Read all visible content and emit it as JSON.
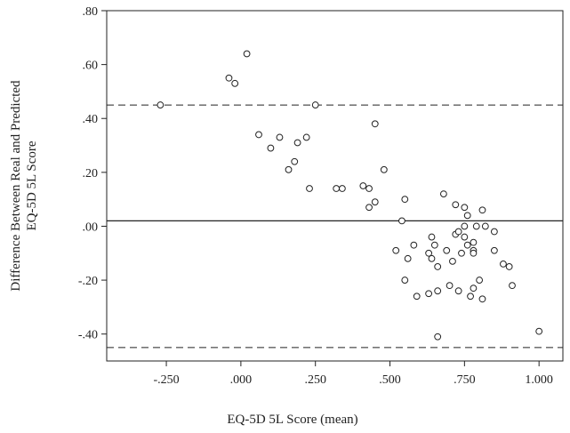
{
  "chart_data": {
    "type": "scatter",
    "xlabel": "EQ-5D 5L Score (mean)",
    "ylabel_lines": [
      "Difference Between Real and Predicted",
      "EQ-5D 5L Score"
    ],
    "xlim": [
      -0.45,
      1.08
    ],
    "ylim": [
      -0.5,
      0.8
    ],
    "x_ticks": [
      -0.25,
      0.0,
      0.25,
      0.5,
      0.75,
      1.0
    ],
    "x_tick_labels": [
      "-.250",
      ".000",
      ".250",
      ".500",
      ".750",
      "1.000"
    ],
    "y_ticks": [
      0.8,
      0.6,
      0.4,
      0.2,
      0.0,
      -0.2,
      -0.4
    ],
    "y_tick_labels": [
      ".80",
      ".60",
      ".40",
      ".20",
      ".00",
      "-.20",
      "-.40"
    ],
    "mean_line": 0.02,
    "limits_of_agreement": [
      0.45,
      -0.45
    ],
    "grid": false,
    "points": [
      {
        "x": -0.27,
        "y": 0.45
      },
      {
        "x": -0.04,
        "y": 0.55
      },
      {
        "x": -0.02,
        "y": 0.53
      },
      {
        "x": 0.02,
        "y": 0.64
      },
      {
        "x": 0.06,
        "y": 0.34
      },
      {
        "x": 0.1,
        "y": 0.29
      },
      {
        "x": 0.13,
        "y": 0.33
      },
      {
        "x": 0.16,
        "y": 0.21
      },
      {
        "x": 0.18,
        "y": 0.24
      },
      {
        "x": 0.19,
        "y": 0.31
      },
      {
        "x": 0.22,
        "y": 0.33
      },
      {
        "x": 0.23,
        "y": 0.14
      },
      {
        "x": 0.25,
        "y": 0.45
      },
      {
        "x": 0.32,
        "y": 0.14
      },
      {
        "x": 0.34,
        "y": 0.14
      },
      {
        "x": 0.41,
        "y": 0.15
      },
      {
        "x": 0.43,
        "y": 0.14
      },
      {
        "x": 0.43,
        "y": 0.07
      },
      {
        "x": 0.45,
        "y": 0.38
      },
      {
        "x": 0.45,
        "y": 0.09
      },
      {
        "x": 0.48,
        "y": 0.21
      },
      {
        "x": 0.52,
        "y": -0.09
      },
      {
        "x": 0.54,
        "y": 0.02
      },
      {
        "x": 0.55,
        "y": 0.1
      },
      {
        "x": 0.55,
        "y": -0.2
      },
      {
        "x": 0.56,
        "y": -0.12
      },
      {
        "x": 0.58,
        "y": -0.07
      },
      {
        "x": 0.59,
        "y": -0.26
      },
      {
        "x": 0.63,
        "y": -0.25
      },
      {
        "x": 0.63,
        "y": -0.1
      },
      {
        "x": 0.64,
        "y": -0.12
      },
      {
        "x": 0.64,
        "y": -0.04
      },
      {
        "x": 0.65,
        "y": -0.07
      },
      {
        "x": 0.66,
        "y": -0.24
      },
      {
        "x": 0.66,
        "y": -0.15
      },
      {
        "x": 0.66,
        "y": -0.41
      },
      {
        "x": 0.68,
        "y": 0.12
      },
      {
        "x": 0.69,
        "y": -0.09
      },
      {
        "x": 0.7,
        "y": -0.22
      },
      {
        "x": 0.71,
        "y": -0.13
      },
      {
        "x": 0.72,
        "y": -0.03
      },
      {
        "x": 0.72,
        "y": 0.08
      },
      {
        "x": 0.73,
        "y": -0.02
      },
      {
        "x": 0.73,
        "y": -0.24
      },
      {
        "x": 0.74,
        "y": -0.1
      },
      {
        "x": 0.75,
        "y": 0.07
      },
      {
        "x": 0.75,
        "y": -0.04
      },
      {
        "x": 0.75,
        "y": 0.0
      },
      {
        "x": 0.76,
        "y": -0.07
      },
      {
        "x": 0.76,
        "y": 0.04
      },
      {
        "x": 0.77,
        "y": -0.26
      },
      {
        "x": 0.78,
        "y": -0.06
      },
      {
        "x": 0.78,
        "y": -0.09
      },
      {
        "x": 0.78,
        "y": -0.1
      },
      {
        "x": 0.78,
        "y": -0.23
      },
      {
        "x": 0.79,
        "y": 0.0
      },
      {
        "x": 0.8,
        "y": -0.2
      },
      {
        "x": 0.81,
        "y": 0.06
      },
      {
        "x": 0.81,
        "y": -0.27
      },
      {
        "x": 0.82,
        "y": 0.0
      },
      {
        "x": 0.85,
        "y": -0.02
      },
      {
        "x": 0.85,
        "y": -0.09
      },
      {
        "x": 0.88,
        "y": -0.14
      },
      {
        "x": 0.9,
        "y": -0.15
      },
      {
        "x": 0.91,
        "y": -0.22
      },
      {
        "x": 1.0,
        "y": -0.39
      }
    ]
  }
}
